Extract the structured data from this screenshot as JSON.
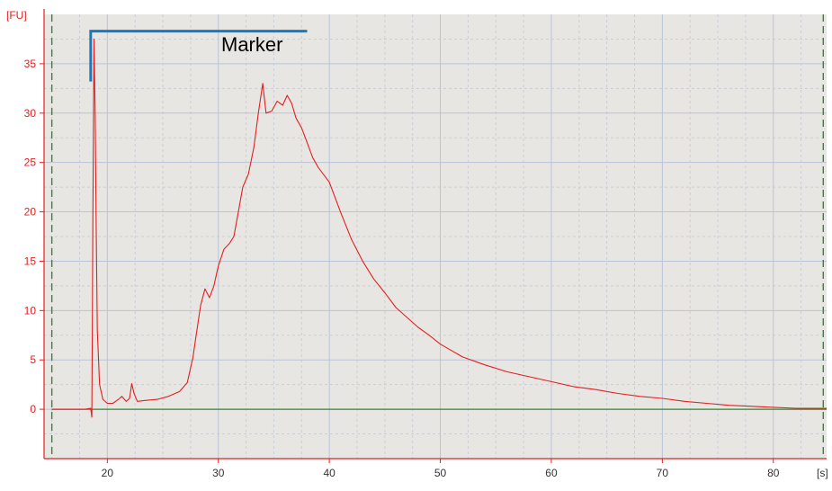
{
  "chart_data": {
    "type": "line",
    "y_unit_label": "[FU]",
    "x_unit_label": "[s]",
    "xlim": [
      14.3,
      84.8
    ],
    "ylim": [
      -5,
      40
    ],
    "x_ticks": [
      "20",
      "30",
      "40",
      "50",
      "60",
      "70",
      "80"
    ],
    "x_tick_values": [
      20,
      30,
      40,
      50,
      60,
      70,
      80
    ],
    "y_ticks": [
      "0",
      "5",
      "10",
      "15",
      "20",
      "25",
      "30",
      "35"
    ],
    "y_tick_values": [
      0,
      5,
      10,
      15,
      20,
      25,
      30,
      35
    ],
    "grid": true,
    "background_color": "#e8e6e3",
    "grid_color": "#b8c4d8",
    "axis_color": "#e02020",
    "series": [
      {
        "color": "#e02020",
        "points": [
          [
            15.0,
            0.0
          ],
          [
            18.0,
            0.0
          ],
          [
            18.5,
            0.1
          ],
          [
            18.6,
            -0.8
          ],
          [
            18.7,
            20
          ],
          [
            18.8,
            37.5
          ],
          [
            18.9,
            30
          ],
          [
            19.0,
            18
          ],
          [
            19.1,
            8
          ],
          [
            19.3,
            2.5
          ],
          [
            19.6,
            1.0
          ],
          [
            20.0,
            0.6
          ],
          [
            20.5,
            0.6
          ],
          [
            21.0,
            1.0
          ],
          [
            21.3,
            1.3
          ],
          [
            21.7,
            0.8
          ],
          [
            22.0,
            1.1
          ],
          [
            22.2,
            2.6
          ],
          [
            22.4,
            1.6
          ],
          [
            22.7,
            0.8
          ],
          [
            23.5,
            0.9
          ],
          [
            24.5,
            1.0
          ],
          [
            25.5,
            1.3
          ],
          [
            26.5,
            1.8
          ],
          [
            27.2,
            2.7
          ],
          [
            27.7,
            5.2
          ],
          [
            28.0,
            7.5
          ],
          [
            28.4,
            10.5
          ],
          [
            28.8,
            12.2
          ],
          [
            29.2,
            11.3
          ],
          [
            29.6,
            12.5
          ],
          [
            30.0,
            14.5
          ],
          [
            30.5,
            16.2
          ],
          [
            31.0,
            16.8
          ],
          [
            31.4,
            17.5
          ],
          [
            31.8,
            20.0
          ],
          [
            32.2,
            22.5
          ],
          [
            32.7,
            23.8
          ],
          [
            33.2,
            26.5
          ],
          [
            33.6,
            30.0
          ],
          [
            34.0,
            33.0
          ],
          [
            34.3,
            30.0
          ],
          [
            34.8,
            30.2
          ],
          [
            35.3,
            31.2
          ],
          [
            35.8,
            30.8
          ],
          [
            36.2,
            31.8
          ],
          [
            36.6,
            31.0
          ],
          [
            37.0,
            29.5
          ],
          [
            37.5,
            28.5
          ],
          [
            38.0,
            27.0
          ],
          [
            38.5,
            25.5
          ],
          [
            39.0,
            24.5
          ],
          [
            40.0,
            23.0
          ],
          [
            41.0,
            20.0
          ],
          [
            42.0,
            17.2
          ],
          [
            43.0,
            15.0
          ],
          [
            44.0,
            13.2
          ],
          [
            45.0,
            11.8
          ],
          [
            46.0,
            10.3
          ],
          [
            47.0,
            9.3
          ],
          [
            48.0,
            8.3
          ],
          [
            49.0,
            7.5
          ],
          [
            50.0,
            6.6
          ],
          [
            52.0,
            5.3
          ],
          [
            54.0,
            4.5
          ],
          [
            56.0,
            3.8
          ],
          [
            58.0,
            3.3
          ],
          [
            60.0,
            2.8
          ],
          [
            62.0,
            2.3
          ],
          [
            64.0,
            2.0
          ],
          [
            66.0,
            1.6
          ],
          [
            68.0,
            1.3
          ],
          [
            70.0,
            1.1
          ],
          [
            72.0,
            0.8
          ],
          [
            74.0,
            0.6
          ],
          [
            76.0,
            0.4
          ],
          [
            78.0,
            0.3
          ],
          [
            80.0,
            0.2
          ],
          [
            82.0,
            0.1
          ],
          [
            84.8,
            0.1
          ]
        ]
      }
    ],
    "baseline": {
      "color": "#2e8b2e",
      "y": 0,
      "x_range": [
        15.0,
        84.8
      ]
    },
    "boundary_markers": {
      "color": "#2e8b2e",
      "x": [
        15.0,
        84.5
      ]
    },
    "annotation": {
      "text": "Marker",
      "color": "#1a78c2",
      "text_color": "#000000",
      "x_range": [
        18.5,
        38.0
      ],
      "y_top": 38.3,
      "y_bottom": 33.2
    }
  }
}
